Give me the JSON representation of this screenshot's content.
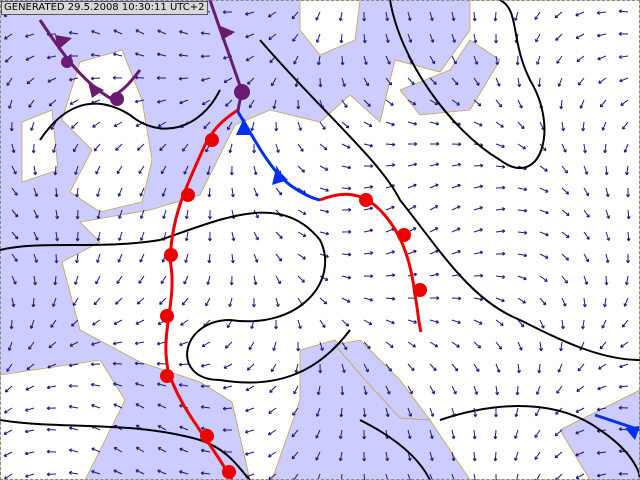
{
  "header": {
    "generated": "GENERATED 29.5.2008 10:30:11 UTC+2"
  }
}
